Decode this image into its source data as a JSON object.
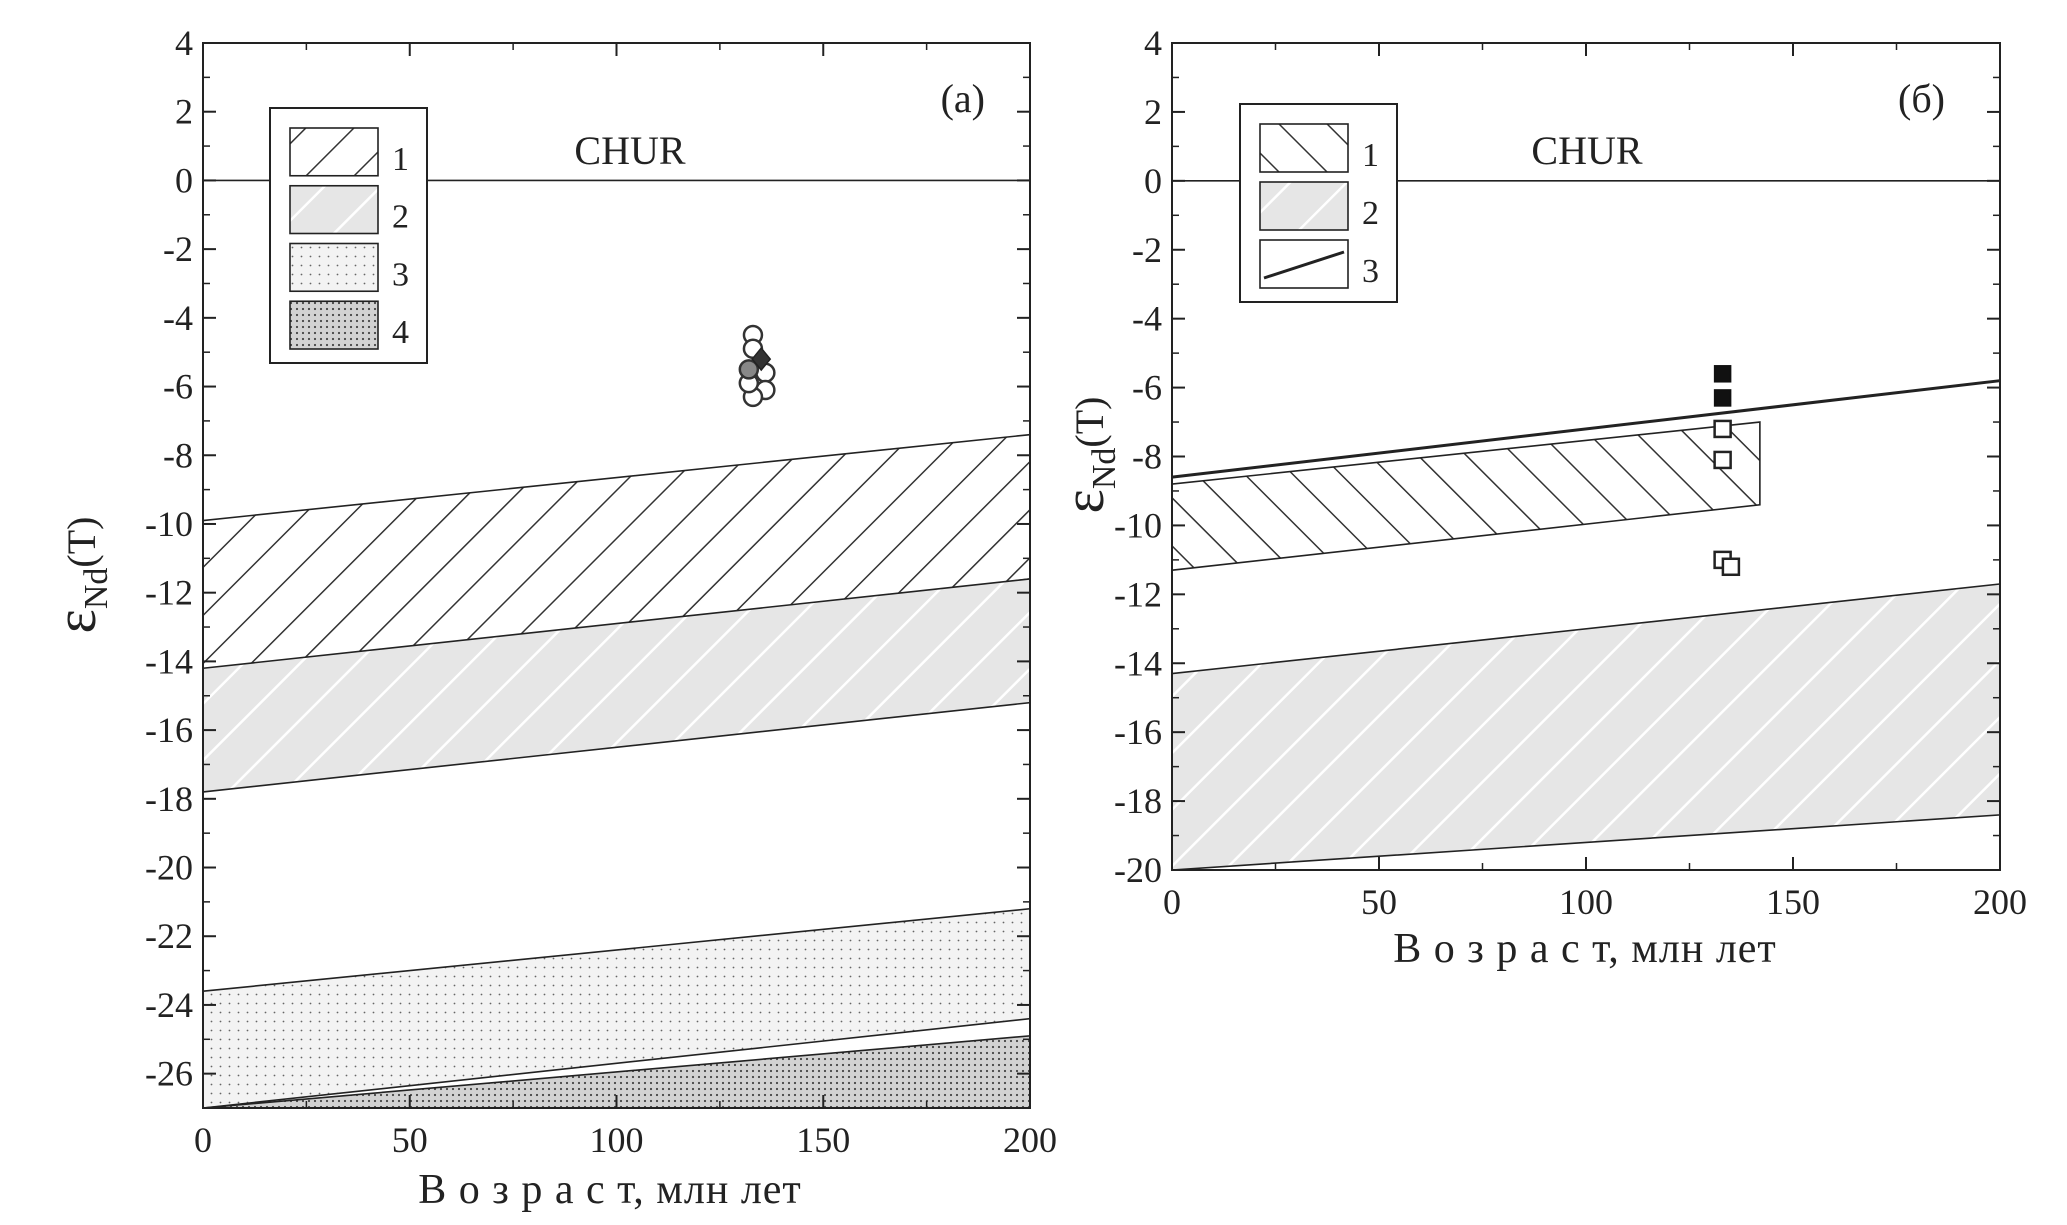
{
  "chart_data": [
    {
      "type": "area",
      "panel_label": "(а)",
      "xlabel": "В о з р а с т, млн лет",
      "ylabel_main": "ε",
      "ylabel_sub": "Nd",
      "ylabel_suffix": "(T)",
      "xlim": [
        0,
        200
      ],
      "ylim": [
        -27,
        4
      ],
      "xticks": [
        0,
        50,
        100,
        150,
        200
      ],
      "yticks": [
        4,
        2,
        0,
        -2,
        -4,
        -6,
        -8,
        -10,
        -12,
        -14,
        -16,
        -18,
        -20,
        -22,
        -24,
        -26
      ],
      "reference_line": {
        "label": "CHUR",
        "y": 0
      },
      "bands": [
        {
          "legend": "1",
          "fill": "hatch-dark",
          "x": [
            0,
            200
          ],
          "upper": [
            -9.9,
            -7.4
          ],
          "lower": [
            -14.7,
            -11.6
          ]
        },
        {
          "legend": "2",
          "fill": "hatch-gray",
          "x": [
            0,
            200
          ],
          "upper": [
            -14.2,
            -11.6
          ],
          "lower": [
            -17.8,
            -15.2
          ]
        },
        {
          "legend": "3",
          "fill": "dots-light",
          "x": [
            0,
            200
          ],
          "upper": [
            -23.6,
            -21.2
          ],
          "lower": [
            -27.0,
            -24.4
          ]
        },
        {
          "legend": "4",
          "fill": "dots-dark",
          "x": [
            0,
            200
          ],
          "upper": [
            -27.0,
            -24.9
          ],
          "lower": [
            -27.0,
            -27.0
          ]
        }
      ],
      "legend": [
        "1",
        "2",
        "3",
        "4"
      ],
      "points": [
        {
          "marker": "open-circle",
          "x": 133,
          "y": -4.5
        },
        {
          "marker": "open-circle",
          "x": 133,
          "y": -4.9
        },
        {
          "marker": "open-circle",
          "x": 136,
          "y": -5.6
        },
        {
          "marker": "open-circle",
          "x": 136,
          "y": -6.1
        },
        {
          "marker": "open-circle",
          "x": 133,
          "y": -6.3
        },
        {
          "marker": "open-circle",
          "x": 132,
          "y": -5.9
        },
        {
          "marker": "gray-circle",
          "x": 132,
          "y": -5.5
        },
        {
          "marker": "filled-diamond",
          "x": 135,
          "y": -5.2
        }
      ]
    },
    {
      "type": "area",
      "panel_label": "(б)",
      "xlabel": "В о з р а с т, млн лет",
      "ylabel_main": "ε",
      "ylabel_sub": "Nd",
      "ylabel_suffix": "(T)",
      "xlim": [
        0,
        200
      ],
      "ylim": [
        -20,
        4
      ],
      "xticks": [
        0,
        50,
        100,
        150,
        200
      ],
      "yticks": [
        4,
        2,
        0,
        -2,
        -4,
        -6,
        -8,
        -10,
        -12,
        -14,
        -16,
        -18,
        -20
      ],
      "reference_line": {
        "label": "CHUR",
        "y": 0
      },
      "bands": [
        {
          "legend": "1",
          "fill": "hatch-dark",
          "x": [
            0,
            142
          ],
          "upper": [
            -8.8,
            -7.0
          ],
          "lower": [
            -11.3,
            -9.4
          ]
        },
        {
          "legend": "2",
          "fill": "hatch-gray",
          "x": [
            0,
            200
          ],
          "upper": [
            -14.3,
            -11.7
          ],
          "lower": [
            -20.0,
            -18.4
          ]
        }
      ],
      "line": {
        "legend": "3",
        "x": [
          0,
          200
        ],
        "y": [
          -8.6,
          -5.8
        ]
      },
      "legend": [
        "1",
        "2",
        "3"
      ],
      "points": [
        {
          "marker": "filled-square",
          "x": 133,
          "y": -5.6
        },
        {
          "marker": "filled-square",
          "x": 133,
          "y": -6.3
        },
        {
          "marker": "open-square",
          "x": 133,
          "y": -7.2
        },
        {
          "marker": "open-square",
          "x": 133,
          "y": -8.1
        },
        {
          "marker": "open-square",
          "x": 133,
          "y": -11.0
        },
        {
          "marker": "open-square",
          "x": 135,
          "y": -11.2
        }
      ]
    }
  ]
}
